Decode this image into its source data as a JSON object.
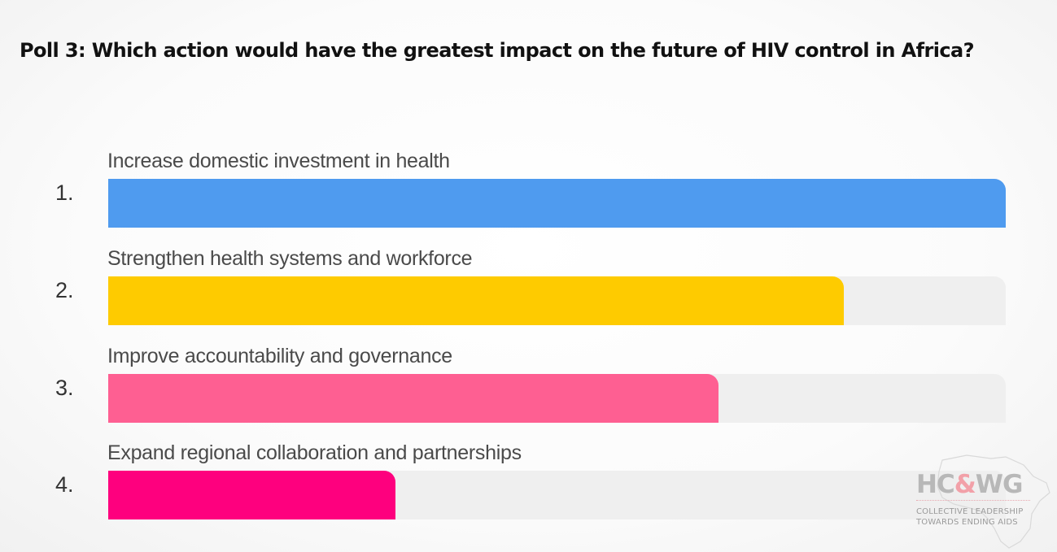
{
  "title": "Poll 3: Which action would have the greatest impact on the future of HIV control in Africa?",
  "chart_data": {
    "type": "bar",
    "orientation": "horizontal",
    "max": 100,
    "bars": [
      {
        "number": "1.",
        "label": "Increase domestic investment in health",
        "value": 100,
        "color": "#4f9bef"
      },
      {
        "number": "2.",
        "label": "Strengthen health systems and workforce",
        "value": 82,
        "color": "#fecb00"
      },
      {
        "number": "3.",
        "label": "Improve accountability and governance",
        "value": 68,
        "color": "#fe5f92"
      },
      {
        "number": "4.",
        "label": "Expand regional collaboration and partnerships",
        "value": 32,
        "color": "#fe007e"
      }
    ],
    "track_color": "#efefef"
  },
  "logo": {
    "main_left": "HC",
    "main_ribbon": "&",
    "main_right": "WG",
    "line1": "COLLECTIVE LEADERSHIP",
    "line2": "TOWARDS ENDING AIDS"
  }
}
